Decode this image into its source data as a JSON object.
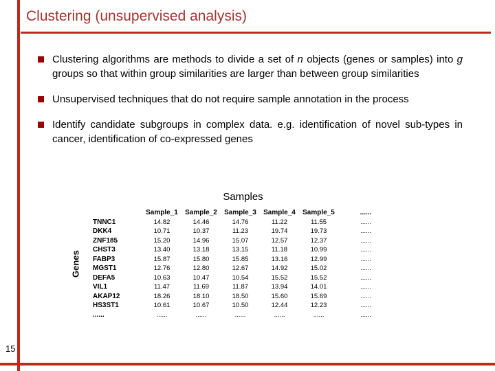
{
  "colors": {
    "title": "#a0342e",
    "accent_bar": "#c0281c",
    "bullet": "#990000"
  },
  "slide": {
    "title": "Clustering (unsupervised analysis)",
    "page_number": "15",
    "bullets": [
      {
        "segments": [
          {
            "text": "Clustering algorithms are methods to divide a set of ",
            "italic": false
          },
          {
            "text": "n",
            "italic": true
          },
          {
            "text": " objects (genes or samples) into ",
            "italic": false
          },
          {
            "text": "g",
            "italic": true
          },
          {
            "text": " groups so that within group similarities are larger than between group similarities",
            "italic": false
          }
        ]
      },
      {
        "segments": [
          {
            "text": "Unsupervised techniques that do not require sample annotation in the process",
            "italic": false
          }
        ]
      },
      {
        "segments": [
          {
            "text": "Identify candidate subgroups in complex data. e.g. identification of novel sub-types in cancer, identification of co-expressed genes",
            "italic": false
          }
        ]
      }
    ]
  },
  "table": {
    "caption": "Samples",
    "y_axis_label": "Genes",
    "col_headers": [
      "Sample_1",
      "Sample_2",
      "Sample_3",
      "Sample_4",
      "Sample_5",
      "......"
    ],
    "rows": [
      {
        "gene": "TNNC1",
        "values": [
          "14.82",
          "14.46",
          "14.76",
          "11.22",
          "11.55",
          "......"
        ]
      },
      {
        "gene": "DKK4",
        "values": [
          "10.71",
          "10.37",
          "11.23",
          "19.74",
          "19.73",
          "......"
        ]
      },
      {
        "gene": "ZNF185",
        "values": [
          "15.20",
          "14.96",
          "15.07",
          "12.57",
          "12.37",
          "......"
        ]
      },
      {
        "gene": "CHST3",
        "values": [
          "13.40",
          "13.18",
          "13.15",
          "11.18",
          "10.99",
          "......"
        ]
      },
      {
        "gene": "FABP3",
        "values": [
          "15.87",
          "15.80",
          "15.85",
          "13.16",
          "12.99",
          "......"
        ]
      },
      {
        "gene": "MGST1",
        "values": [
          "12.76",
          "12.80",
          "12.67",
          "14.92",
          "15.02",
          "......"
        ]
      },
      {
        "gene": "DEFA5",
        "values": [
          "10.63",
          "10.47",
          "10.54",
          "15.52",
          "15.52",
          "......"
        ]
      },
      {
        "gene": "VIL1",
        "values": [
          "11.47",
          "11.69",
          "11.87",
          "13.94",
          "14.01",
          "......"
        ]
      },
      {
        "gene": "AKAP12",
        "values": [
          "18.26",
          "18.10",
          "18.50",
          "15.60",
          "15.69",
          "......"
        ]
      },
      {
        "gene": "HS3ST1",
        "values": [
          "10.61",
          "10.67",
          "10.50",
          "12.44",
          "12.23",
          "......"
        ]
      },
      {
        "gene": "......",
        "values": [
          "......",
          "......",
          "......",
          "......",
          "......",
          "......"
        ]
      }
    ]
  }
}
